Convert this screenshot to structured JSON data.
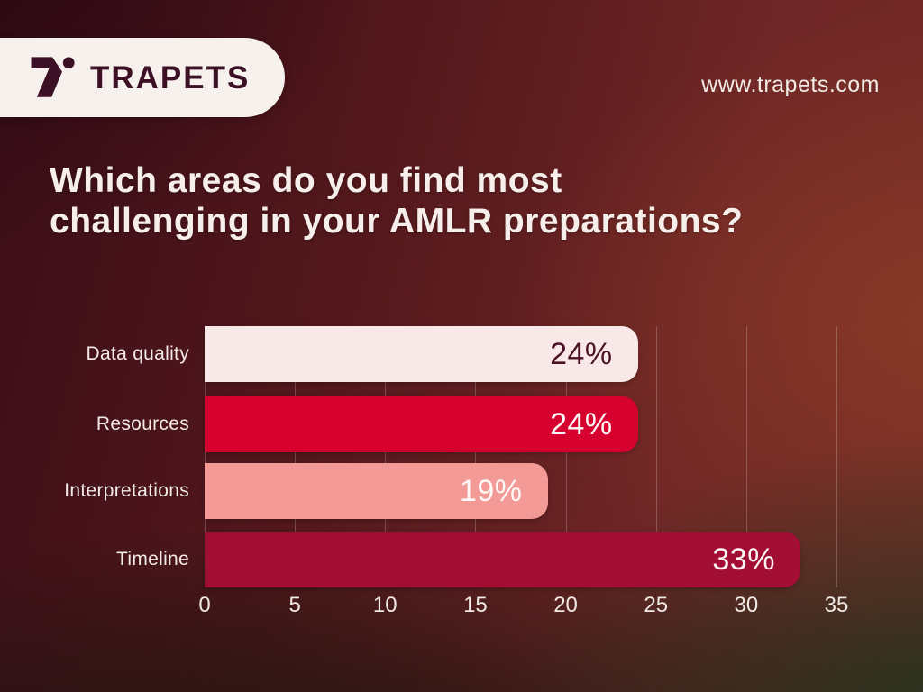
{
  "brand": {
    "name": "TRAPETS",
    "website": "www.trapets.com"
  },
  "title": {
    "line1": "Which areas do you find most",
    "line2": "challenging in your AMLR preparations?"
  },
  "chart_data": {
    "type": "bar",
    "orientation": "horizontal",
    "title": "Which areas do you find most challenging in your AMLR preparations?",
    "categories": [
      "Data quality",
      "Resources",
      "Interpretations",
      "Timeline"
    ],
    "values": [
      24,
      24,
      19,
      33
    ],
    "value_labels": [
      "24%",
      "24%",
      "19%",
      "33%"
    ],
    "bar_colors": [
      "#f8e9e8",
      "#d7012f",
      "#f49a96",
      "#a30e35"
    ],
    "value_text_colors": [
      "#4a1127",
      "#fdf7f6",
      "#fdf7f6",
      "#fdf7f6"
    ],
    "xlabel": "",
    "ylabel": "",
    "x_ticks": [
      0,
      5,
      10,
      15,
      20,
      25,
      30,
      35
    ],
    "xlim": [
      0,
      35
    ],
    "grid": "vertical gridlines at ticks",
    "legend": false
  },
  "colors": {
    "logo": "#3d1125",
    "pill_bg": "#f6f1ec",
    "text": "#f6eeea",
    "gridline": "rgba(255,255,255,0.22)"
  }
}
